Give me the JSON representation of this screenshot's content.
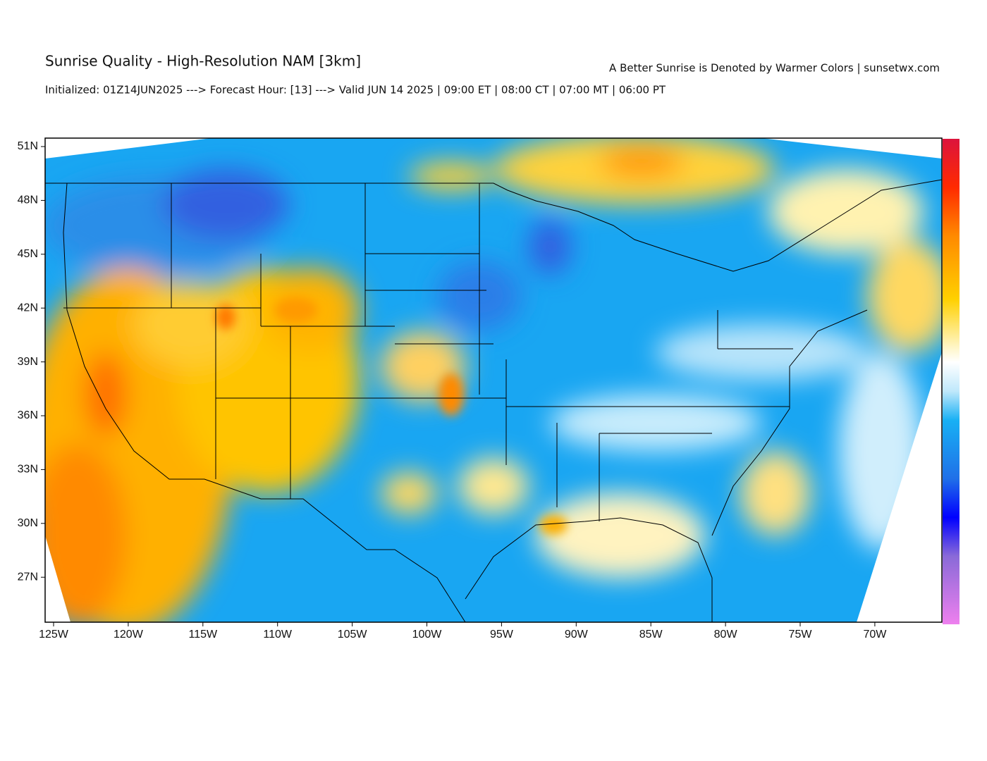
{
  "header": {
    "title": "Sunrise Quality - High-Resolution NAM [3km]",
    "caption": "A Better Sunrise is Denoted by Warmer Colors | sunsetwx.com",
    "subtitle": "Initialized: 01Z14JUN2025 ---> Forecast Hour: [13] ---> Valid JUN 14 2025 | 09:00 ET | 08:00 CT | 07:00 MT | 06:00 PT"
  },
  "map": {
    "lat_labels": [
      "51N",
      "48N",
      "45N",
      "42N",
      "39N",
      "36N",
      "33N",
      "30N",
      "27N"
    ],
    "lon_labels": [
      "125W",
      "120W",
      "115W",
      "110W",
      "105W",
      "100W",
      "95W",
      "90W",
      "85W",
      "80W",
      "75W",
      "70W"
    ]
  }
}
